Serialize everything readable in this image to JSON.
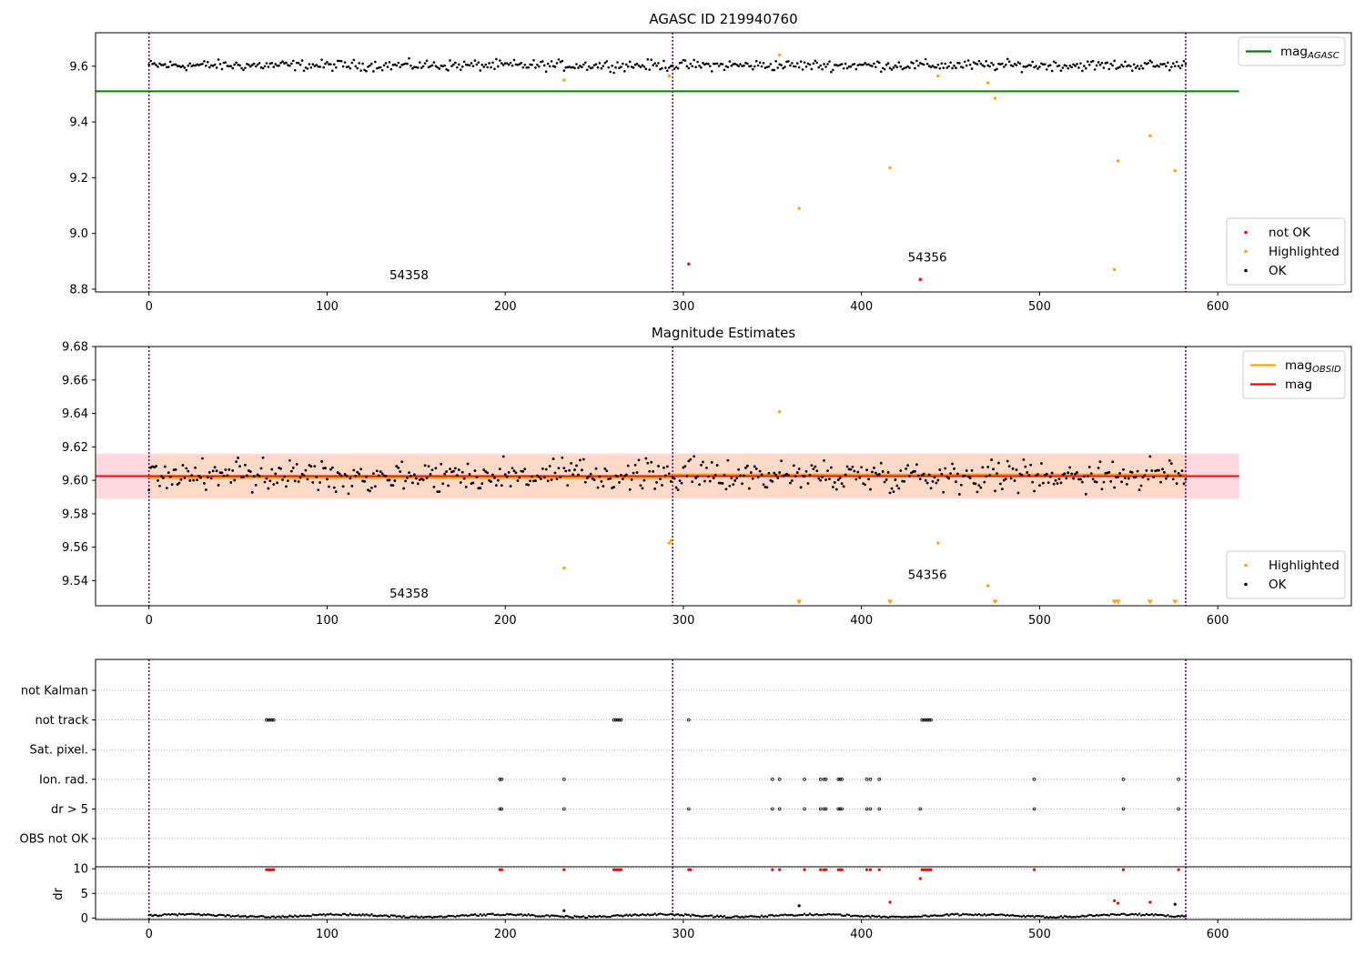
{
  "chart_data": [
    {
      "type": "scatter",
      "title": "AGASC ID 219940760",
      "xlim": [
        -30,
        675
      ],
      "ylim": [
        8.79,
        9.72
      ],
      "xticks": [
        0,
        100,
        200,
        300,
        400,
        500,
        600
      ],
      "yticks": [
        8.8,
        9.0,
        9.2,
        9.4,
        9.6
      ],
      "ytick_labels": [
        "8.8",
        "9.0",
        "9.2",
        "9.4",
        "9.6"
      ],
      "vlines": [
        0,
        294,
        582
      ],
      "vline_color": "#800080",
      "hlines": [
        {
          "name": "mag_AGASC",
          "y": 9.51,
          "x": [
            -30,
            612
          ],
          "color": "#008000"
        }
      ],
      "ok_band": {
        "center": 9.603,
        "amplitude": 0.028
      },
      "series": [
        {
          "name": "not OK",
          "color": "#ff0000",
          "points": [
            [
              303,
              8.89
            ],
            [
              433,
              8.835
            ]
          ]
        },
        {
          "name": "Highlighted",
          "color": "#ffa500",
          "points": [
            [
              233,
              9.55
            ],
            [
              292,
              9.565
            ],
            [
              354,
              9.64
            ],
            [
              365,
              9.09
            ],
            [
              416,
              9.235
            ],
            [
              443,
              9.565
            ],
            [
              471,
              9.54
            ],
            [
              475,
              9.485
            ],
            [
              542,
              8.87
            ],
            [
              544,
              9.26
            ],
            [
              562,
              9.35
            ],
            [
              576,
              9.225
            ]
          ]
        },
        {
          "name": "OK",
          "color": "#000000"
        }
      ],
      "annotations": [
        {
          "text": "54358",
          "x": 135,
          "y": 8.835
        },
        {
          "text": "54356",
          "x": 426,
          "y": 8.9
        }
      ],
      "legends": [
        {
          "position": "upper-right",
          "entries": [
            {
              "label": "mag",
              "sub": "AGASC",
              "color": "#008000",
              "kind": "line"
            }
          ]
        },
        {
          "position": "lower-right",
          "entries": [
            {
              "label": "not OK",
              "color": "#ff0000",
              "kind": "dot"
            },
            {
              "label": "Highlighted",
              "color": "#ffa500",
              "kind": "dot"
            },
            {
              "label": "OK",
              "color": "#000000",
              "kind": "dot"
            }
          ]
        }
      ]
    },
    {
      "type": "scatter",
      "title": "Magnitude Estimates",
      "xlim": [
        -30,
        675
      ],
      "ylim": [
        9.525,
        9.68
      ],
      "xticks": [
        0,
        100,
        200,
        300,
        400,
        500,
        600
      ],
      "yticks": [
        9.54,
        9.56,
        9.58,
        9.6,
        9.62,
        9.64,
        9.66,
        9.68
      ],
      "ytick_labels": [
        "9.54",
        "9.56",
        "9.58",
        "9.60",
        "9.62",
        "9.64",
        "9.66",
        "9.68"
      ],
      "vlines": [
        0,
        294,
        582
      ],
      "vline_color": "#800080",
      "hlines": [
        {
          "name": "mag",
          "y": 9.6025,
          "x": [
            -30,
            612
          ],
          "color": "#ff0000"
        },
        {
          "name": "mag_OBSID_1",
          "y": 9.6015,
          "x": [
            0,
            294
          ],
          "color": "#ffa500"
        },
        {
          "name": "mag_OBSID_2",
          "y": 9.6035,
          "x": [
            294,
            582
          ],
          "color": "#ffa500"
        }
      ],
      "bands": [
        {
          "y": [
            9.589,
            9.616
          ],
          "x": [
            -30,
            612
          ],
          "color": "#ffc0cb"
        },
        {
          "y": [
            9.589,
            9.615
          ],
          "x": [
            0,
            294
          ],
          "color": "#ffdab9"
        },
        {
          "y": [
            9.59,
            9.616
          ],
          "x": [
            294,
            582
          ],
          "color": "#ffdab9"
        }
      ],
      "ok_band": {
        "center": 9.603,
        "amplitude": 0.014
      },
      "series": [
        {
          "name": "Highlighted",
          "color": "#ffa500",
          "points": [
            [
              233,
              9.5475
            ],
            [
              292,
              9.5625
            ],
            [
              293,
              9.564
            ],
            [
              354,
              9.641
            ],
            [
              471,
              9.537
            ],
            [
              443,
              9.5625
            ]
          ]
        },
        {
          "name": "Highlighted (below axis)",
          "color": "#ffa500",
          "points": [
            [
              365,
              9.527
            ],
            [
              416,
              9.527
            ],
            [
              475,
              9.527
            ],
            [
              542,
              9.527
            ],
            [
              544,
              9.527
            ],
            [
              562,
              9.527
            ],
            [
              576,
              9.527
            ]
          ]
        },
        {
          "name": "OK",
          "color": "#000000"
        }
      ],
      "annotations": [
        {
          "text": "54358",
          "x": 135,
          "y": 9.53
        },
        {
          "text": "54356",
          "x": 426,
          "y": 9.541
        }
      ],
      "legends": [
        {
          "position": "upper-right",
          "entries": [
            {
              "label": "mag",
              "sub": "OBSID",
              "color": "#ffa500",
              "kind": "line"
            },
            {
              "label": "mag",
              "sub": "",
              "color": "#ff0000",
              "kind": "line"
            }
          ]
        },
        {
          "position": "lower-right",
          "entries": [
            {
              "label": "Highlighted",
              "color": "#ffa500",
              "kind": "dot"
            },
            {
              "label": "OK",
              "color": "#000000",
              "kind": "dot"
            }
          ]
        }
      ]
    },
    {
      "type": "scatter",
      "title": "",
      "xlim": [
        -30,
        675
      ],
      "vlines": [
        0,
        294,
        582
      ],
      "vline_color": "#800080",
      "flag_labels": [
        "not Kalman",
        "not track",
        "Sat. pixel.",
        "Ion. rad.",
        "dr > 5",
        "OBS not OK"
      ],
      "flags": {
        "not Kalman": [],
        "not track": [
          66,
          67,
          68,
          69,
          70,
          261,
          262,
          263,
          264,
          265,
          303,
          434,
          435,
          436,
          437,
          438,
          439
        ],
        "Sat. pixel.": [],
        "Ion. rad.": [
          197,
          198,
          233,
          350,
          354,
          368,
          377,
          379,
          380,
          387,
          388,
          389,
          403,
          405,
          410,
          497,
          547,
          578
        ],
        "dr > 5": [
          197,
          198,
          233,
          303,
          350,
          354,
          368,
          377,
          379,
          380,
          387,
          388,
          389,
          403,
          405,
          410,
          433,
          497,
          547,
          578
        ],
        "OBS not OK": []
      }
    },
    {
      "type": "scatter",
      "title": "",
      "xlim": [
        -30,
        675
      ],
      "ylim": [
        -0.3,
        10.4
      ],
      "xticks": [
        0,
        100,
        200,
        300,
        400,
        500,
        600
      ],
      "yticks": [
        0,
        5,
        10
      ],
      "ytick_labels": [
        "0",
        "5",
        "10"
      ],
      "ylabel": "dr",
      "vlines": [
        0,
        294,
        582
      ],
      "vline_color": "#800080",
      "series": [
        {
          "name": "dr > 5",
          "color": "#ff0000",
          "points": [
            [
              66,
              9.8
            ],
            [
              67,
              9.8
            ],
            [
              68,
              9.8
            ],
            [
              69,
              9.8
            ],
            [
              70,
              9.8
            ],
            [
              197,
              9.8
            ],
            [
              198,
              9.8
            ],
            [
              233,
              9.8
            ],
            [
              261,
              9.8
            ],
            [
              262,
              9.8
            ],
            [
              263,
              9.8
            ],
            [
              264,
              9.8
            ],
            [
              265,
              9.8
            ],
            [
              303,
              9.8
            ],
            [
              304,
              9.8
            ],
            [
              350,
              9.8
            ],
            [
              354,
              9.8
            ],
            [
              368,
              9.8
            ],
            [
              377,
              9.8
            ],
            [
              379,
              9.8
            ],
            [
              380,
              9.8
            ],
            [
              387,
              9.8
            ],
            [
              388,
              9.8
            ],
            [
              389,
              9.8
            ],
            [
              403,
              9.8
            ],
            [
              405,
              9.8
            ],
            [
              410,
              9.8
            ],
            [
              434,
              9.8
            ],
            [
              435,
              9.8
            ],
            [
              436,
              9.8
            ],
            [
              437,
              9.8
            ],
            [
              438,
              9.8
            ],
            [
              439,
              9.8
            ],
            [
              497,
              9.8
            ],
            [
              547,
              9.8
            ],
            [
              578,
              9.8
            ],
            [
              433,
              8.0
            ],
            [
              416,
              3.2
            ],
            [
              542,
              3.5
            ],
            [
              544,
              3.0
            ],
            [
              562,
              3.2
            ]
          ]
        },
        {
          "name": "dr",
          "color": "#000000",
          "points": [
            [
              233,
              1.5
            ],
            [
              365,
              2.5
            ],
            [
              576,
              2.8
            ]
          ]
        }
      ]
    }
  ]
}
